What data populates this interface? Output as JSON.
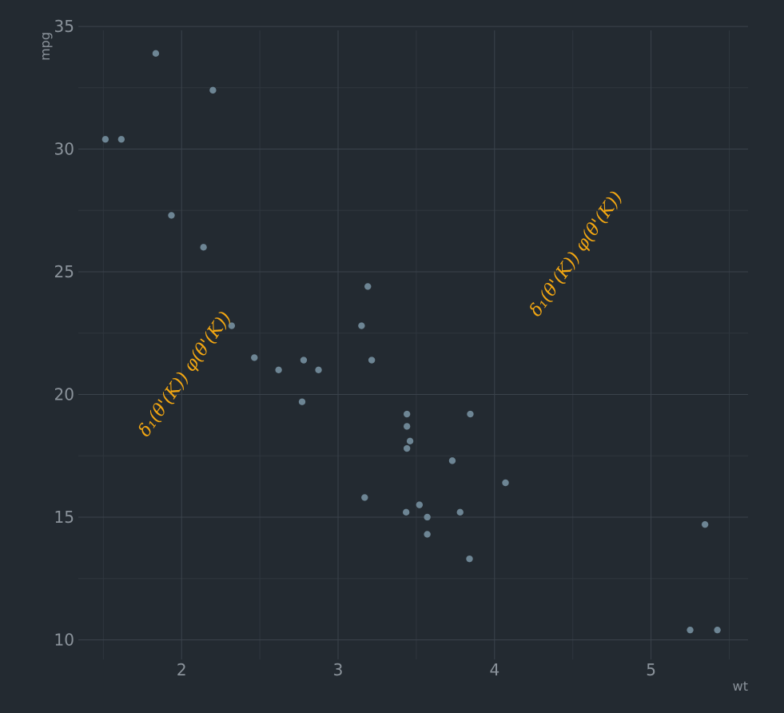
{
  "chart_data": {
    "type": "scatter",
    "title": "",
    "xlabel": "wt",
    "ylabel": "mpg",
    "xlim": [
      1.34,
      5.62
    ],
    "ylim": [
      9.2,
      35.1
    ],
    "x_ticks": [
      2,
      3,
      4,
      5
    ],
    "y_ticks": [
      10,
      15,
      20,
      25,
      30,
      35
    ],
    "x_tick_labels": [
      "2",
      "3",
      "4",
      "5"
    ],
    "y_tick_labels": [
      "10",
      "15",
      "20",
      "25",
      "30",
      "35"
    ],
    "grid": true,
    "point_color": "#6d8594",
    "annotation_color": "#f3a712",
    "points": [
      {
        "x": 2.62,
        "y": 21.0
      },
      {
        "x": 2.875,
        "y": 21.0
      },
      {
        "x": 2.32,
        "y": 22.8
      },
      {
        "x": 3.215,
        "y": 21.4
      },
      {
        "x": 3.44,
        "y": 18.7
      },
      {
        "x": 3.46,
        "y": 18.1
      },
      {
        "x": 3.57,
        "y": 14.3
      },
      {
        "x": 3.19,
        "y": 24.4
      },
      {
        "x": 3.15,
        "y": 22.8
      },
      {
        "x": 3.44,
        "y": 19.2
      },
      {
        "x": 3.44,
        "y": 17.8
      },
      {
        "x": 4.07,
        "y": 16.4
      },
      {
        "x": 3.73,
        "y": 17.3
      },
      {
        "x": 3.78,
        "y": 15.2
      },
      {
        "x": 5.25,
        "y": 10.4
      },
      {
        "x": 5.424,
        "y": 10.4
      },
      {
        "x": 5.345,
        "y": 14.7
      },
      {
        "x": 2.2,
        "y": 32.4
      },
      {
        "x": 1.615,
        "y": 30.4
      },
      {
        "x": 1.835,
        "y": 33.9
      },
      {
        "x": 2.465,
        "y": 21.5
      },
      {
        "x": 3.52,
        "y": 15.5
      },
      {
        "x": 3.435,
        "y": 15.2
      },
      {
        "x": 3.84,
        "y": 13.3
      },
      {
        "x": 3.845,
        "y": 19.2
      },
      {
        "x": 1.935,
        "y": 27.3
      },
      {
        "x": 2.14,
        "y": 26.0
      },
      {
        "x": 1.513,
        "y": 30.4
      },
      {
        "x": 3.17,
        "y": 15.8
      },
      {
        "x": 2.77,
        "y": 19.7
      },
      {
        "x": 3.57,
        "y": 15.0
      },
      {
        "x": 2.78,
        "y": 21.4
      }
    ],
    "annotations": [
      {
        "text": "δ₁(θ'(K)) φ(θ'(K))",
        "x": 2.05,
        "y": 20.7,
        "rotation": -55
      },
      {
        "text": "δ₁(θ'(K)) φ(θ'(K))",
        "x": 4.55,
        "y": 25.6,
        "rotation": -55
      }
    ]
  }
}
